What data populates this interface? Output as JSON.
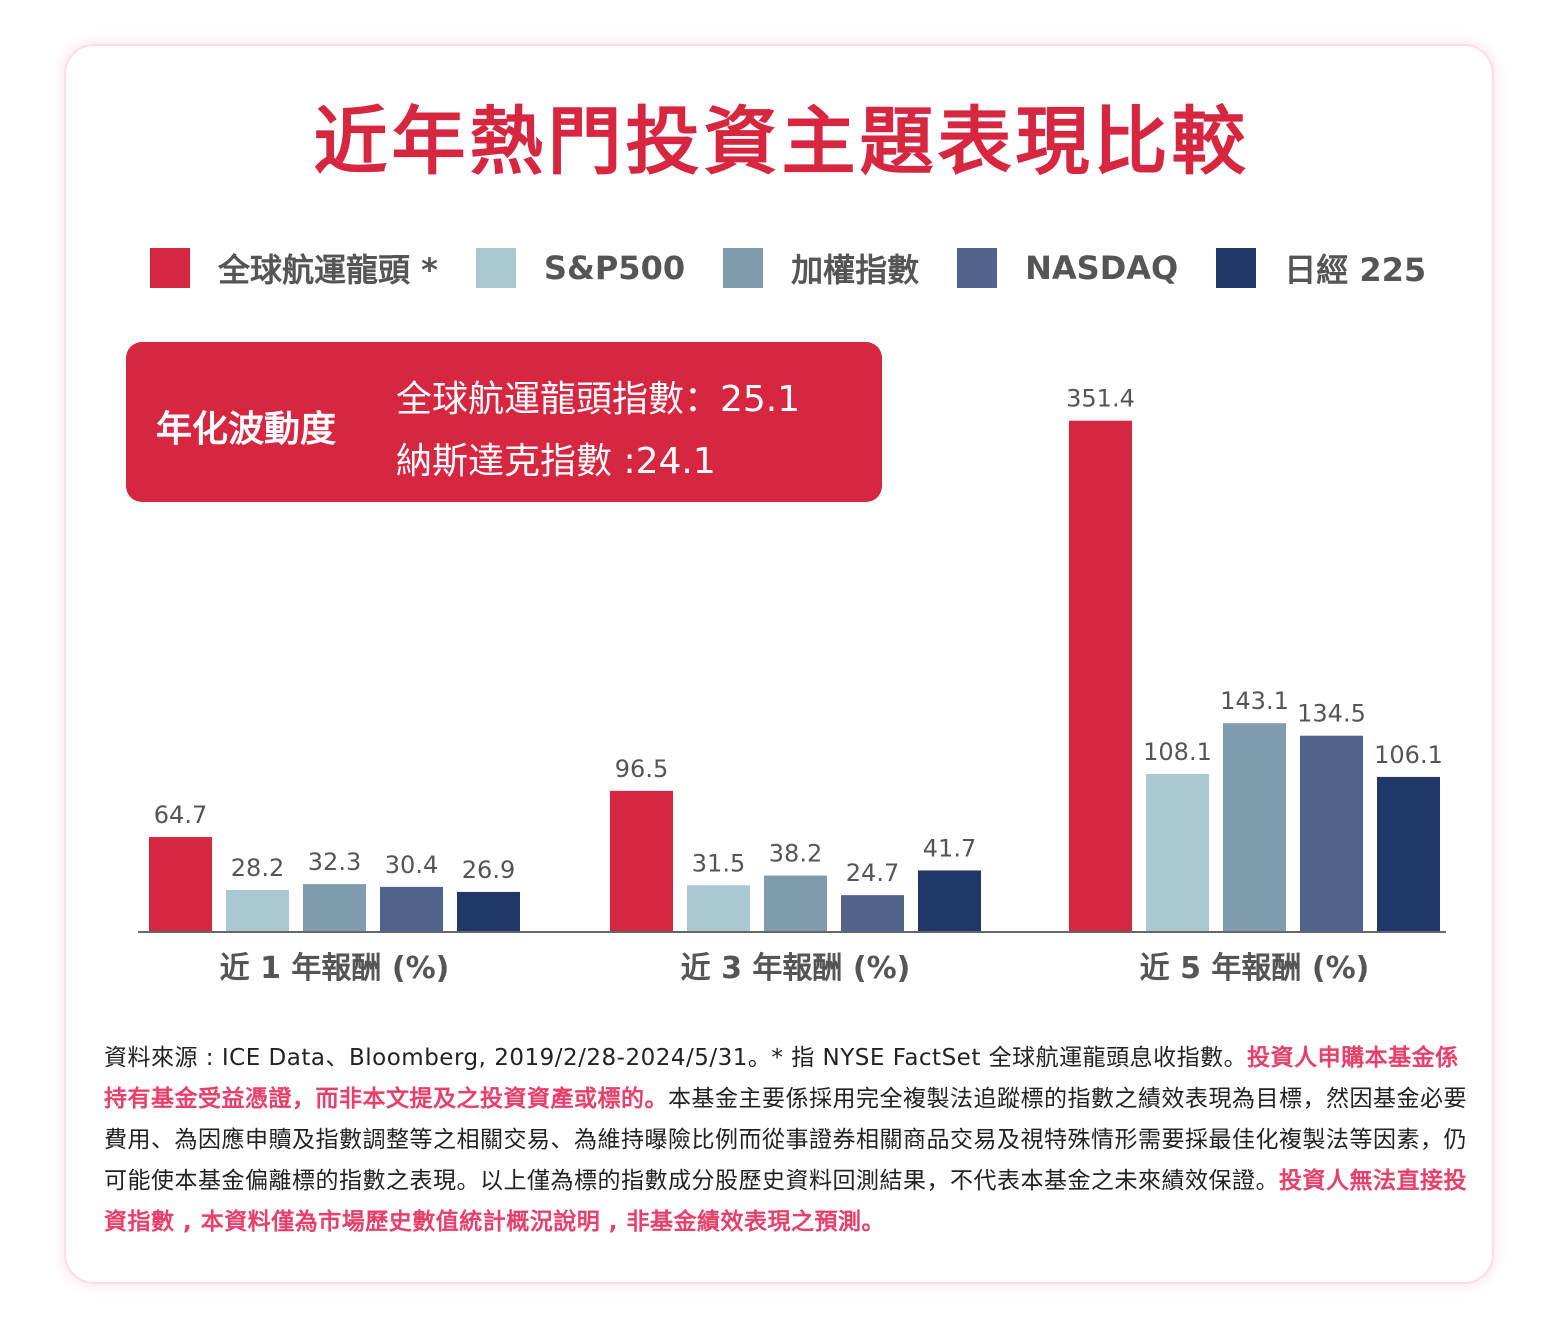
{
  "title": "近年熱門投資主題表現比較",
  "legend": [
    {
      "label": "全球航運龍頭 *",
      "color": "#d62640"
    },
    {
      "label": "S&P500",
      "color": "#a9c8cf"
    },
    {
      "label": "加權指數",
      "color": "#7f9bae"
    },
    {
      "label": "NASDAQ",
      "color": "#50648e"
    },
    {
      "label": "日經 225",
      "color": "#203868"
    }
  ],
  "volatility": {
    "title": "年化波動度",
    "line1": "全球航運龍頭指數：25.1",
    "line2": "納斯達克指數 :24.1"
  },
  "chart_data": {
    "type": "bar",
    "categories": [
      "近 1 年報酬 (%)",
      "近 3 年報酬 (%)",
      "近 5 年報酬 (%)"
    ],
    "series": [
      {
        "name": "全球航運龍頭 *",
        "color": "#d62640",
        "values": [
          64.7,
          96.5,
          351.4
        ]
      },
      {
        "name": "S&P500",
        "color": "#a9c8cf",
        "values": [
          28.2,
          31.5,
          108.1
        ]
      },
      {
        "name": "加權指數",
        "color": "#7f9bae",
        "values": [
          32.3,
          38.2,
          143.1
        ]
      },
      {
        "name": "NASDAQ",
        "color": "#50648e",
        "values": [
          30.4,
          24.7,
          134.5
        ]
      },
      {
        "name": "日經 225",
        "color": "#203868",
        "values": [
          26.9,
          41.7,
          106.1
        ]
      }
    ],
    "grid": false,
    "legend_position": "top"
  },
  "footnote": {
    "part1": "資料來源 : ICE Data、Bloomberg, 2019/2/28-2024/5/31。* 指 NYSE FactSet 全球航運龍頭息收指數。",
    "part2": "投資人申購本基金係持有基金受益憑證，而非本文提及之投資資產或標的。",
    "part3": "本基金主要係採用完全複製法追蹤標的指數之績效表現為目標，然因基金必要費用、為因應申贖及指數調整等之相關交易、為維持曝險比例而從事證券相關商品交易及視特殊情形需要採最佳化複製法等因素，仍可能使本基金偏離標的指數之表現。以上僅為標的指數成分股歷史資料回測結果，不代表本基金之未來績效保證。",
    "part4": "投資人無法直接投資指數 , 本資料僅為市場歷史數值統計概況說明 , 非基金績效表現之預測。"
  }
}
